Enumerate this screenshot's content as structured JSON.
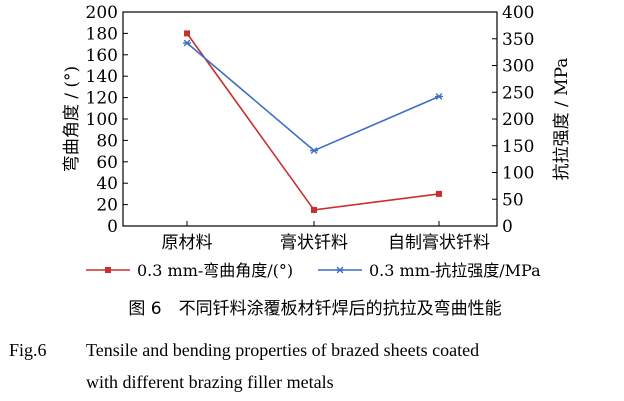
{
  "chart_data": {
    "type": "line",
    "categories": [
      "原材料",
      "膏状钎料",
      "自制膏状钎料"
    ],
    "y_left": {
      "label": "弯曲角度 / (°)",
      "range": [
        0,
        200
      ],
      "ticks": [
        "0",
        "20",
        "40",
        "60",
        "80",
        "100",
        "120",
        "140",
        "160",
        "180",
        "200"
      ]
    },
    "y_right": {
      "label": "抗拉强度 / MPa",
      "range": [
        0,
        400
      ],
      "ticks": [
        "0",
        "50",
        "100",
        "150",
        "200",
        "250",
        "300",
        "350",
        "400"
      ]
    },
    "series": [
      {
        "name": "0.3 mm-弯曲角度/(°)",
        "axis": "left",
        "marker": "square",
        "color": "#c8302e",
        "values": [
          180,
          15,
          30
        ]
      },
      {
        "name": "0.3 mm-抗拉强度/MPa",
        "axis": "right",
        "marker": "star",
        "color": "#3d6fc4",
        "values": [
          342,
          141,
          242
        ]
      }
    ],
    "grid": false,
    "legend": "bottom"
  },
  "caption": {
    "cn": "图 6　不同钎料涂覆板材钎焊后的抗拉及弯曲性能",
    "en_label": "Fig.6",
    "en_line1": "Tensile and bending properties of brazed sheets coated",
    "en_line2": "with different brazing filler metals"
  }
}
